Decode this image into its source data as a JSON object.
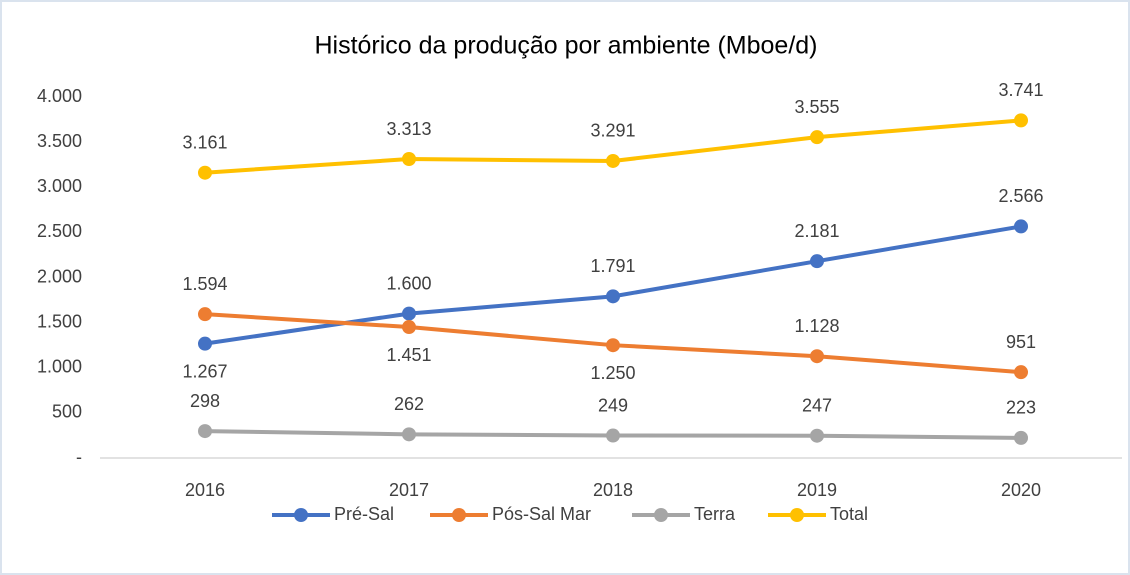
{
  "chart_data": {
    "type": "line",
    "title": "Histórico da produção por ambiente (Mboe/d)",
    "categories": [
      "2016",
      "2017",
      "2018",
      "2019",
      "2020"
    ],
    "series": [
      {
        "name": "Pré-Sal",
        "color": "#4472c4",
        "values": [
          1267,
          1600,
          1791,
          2181,
          2566
        ],
        "value_labels": [
          "1.267",
          "1.600",
          "1.791",
          "2.181",
          "2.566"
        ]
      },
      {
        "name": "Pós-Sal Mar",
        "color": "#ed7d31",
        "values": [
          1594,
          1451,
          1250,
          1128,
          951
        ],
        "value_labels": [
          "1.594",
          "1.451",
          "1.250",
          "1.128",
          "951"
        ]
      },
      {
        "name": "Terra",
        "color": "#a5a5a5",
        "values": [
          298,
          262,
          249,
          247,
          223
        ],
        "value_labels": [
          "298",
          "262",
          "249",
          "247",
          "223"
        ]
      },
      {
        "name": "Total",
        "color": "#ffc000",
        "values": [
          3161,
          3313,
          3291,
          3555,
          3741
        ],
        "value_labels": [
          "3.161",
          "3.313",
          "3.291",
          "3.555",
          "3.741"
        ]
      }
    ],
    "ylim": [
      0,
      4000
    ],
    "yticks": [
      {
        "value": 0,
        "label": "-"
      },
      500,
      {
        "value": 1000,
        "label": "1.000"
      },
      {
        "value": 1500,
        "label": "1.500"
      },
      {
        "value": 2000,
        "label": "2.000"
      },
      {
        "value": 2500,
        "label": "2.500"
      },
      {
        "value": 3000,
        "label": "3.000"
      },
      {
        "value": 3500,
        "label": "3.500"
      },
      {
        "value": 4000,
        "label": "4.000"
      }
    ],
    "legend": "bottom",
    "grid": false
  }
}
